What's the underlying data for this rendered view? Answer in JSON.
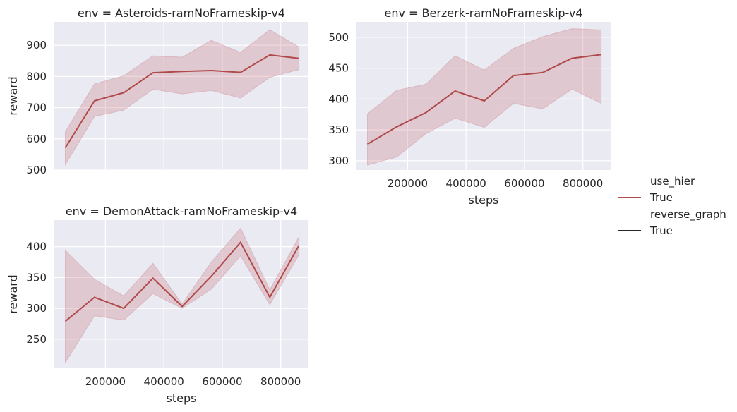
{
  "legend": {
    "groups": [
      {
        "title": "use_hier",
        "entries": [
          {
            "label": "True",
            "color": "#b04a4a"
          }
        ]
      },
      {
        "title": "reverse_graph",
        "entries": [
          {
            "label": "True",
            "color": "#262626"
          }
        ]
      }
    ]
  },
  "chart_data": [
    {
      "type": "line",
      "title": "env = Asteroids-ramNoFrameskip-v4",
      "xlabel": "",
      "ylabel": "reward",
      "xlim": [
        25000,
        895000
      ],
      "ylim": [
        500,
        975
      ],
      "xticks": [],
      "xtick_grid": [
        200000,
        400000,
        600000,
        800000
      ],
      "yticks": [
        500,
        600,
        700,
        800,
        900
      ],
      "line_color": "#b04a4a",
      "band_color": "#c97a85",
      "x": [
        62500,
        162500,
        262500,
        362500,
        462500,
        562500,
        662500,
        762500,
        862500
      ],
      "y": [
        571,
        722,
        748,
        812,
        816,
        819,
        813,
        869,
        858
      ],
      "y_lower": [
        517,
        672,
        692,
        759,
        744,
        755,
        731,
        797,
        822
      ],
      "y_upper": [
        623,
        776,
        802,
        866,
        862,
        916,
        877,
        950,
        894
      ]
    },
    {
      "type": "line",
      "title": "env = Berzerk-ramNoFrameskip-v4",
      "xlabel": "steps",
      "ylabel": "",
      "xlim": [
        25000,
        895000
      ],
      "ylim": [
        285,
        525
      ],
      "xticks": [
        200000,
        400000,
        600000,
        800000
      ],
      "yticks": [
        300,
        350,
        400,
        450,
        500
      ],
      "line_color": "#b04a4a",
      "band_color": "#c97a85",
      "x": [
        62500,
        162500,
        262500,
        362500,
        462500,
        562500,
        662500,
        762500,
        862500
      ],
      "y": [
        327,
        355,
        378,
        413,
        397,
        438,
        443,
        466,
        472
      ],
      "y_lower": [
        293,
        306,
        344,
        369,
        354,
        393,
        384,
        416,
        393
      ],
      "y_upper": [
        376,
        414,
        424,
        470,
        447,
        482,
        501,
        514,
        512
      ]
    },
    {
      "type": "line",
      "title": "env = DemonAttack-ramNoFrameskip-v4",
      "xlabel": "steps",
      "ylabel": "reward",
      "xlim": [
        25000,
        895000
      ],
      "ylim": [
        203,
        443
      ],
      "xticks": [
        200000,
        400000,
        600000,
        800000
      ],
      "yticks": [
        250,
        300,
        350,
        400
      ],
      "line_color": "#b04a4a",
      "band_color": "#c97a85",
      "x": [
        62500,
        162500,
        262500,
        362500,
        462500,
        562500,
        662500,
        762500,
        862500
      ],
      "y": [
        279,
        318,
        300,
        349,
        303,
        352,
        407,
        318,
        402
      ],
      "y_lower": [
        212,
        288,
        281,
        324,
        300,
        331,
        385,
        306,
        387
      ],
      "y_upper": [
        394,
        347,
        320,
        373,
        307,
        375,
        430,
        330,
        416
      ]
    }
  ]
}
